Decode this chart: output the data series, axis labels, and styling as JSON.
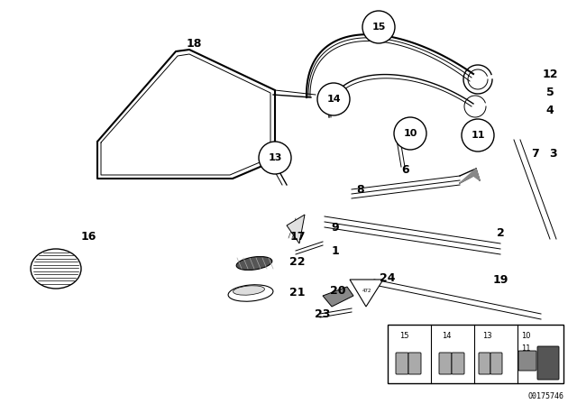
{
  "bg_color": "#ffffff",
  "line_color": "#000000",
  "fig_width": 6.4,
  "fig_height": 4.48,
  "dpi": 100,
  "footer_label": "O0175746"
}
